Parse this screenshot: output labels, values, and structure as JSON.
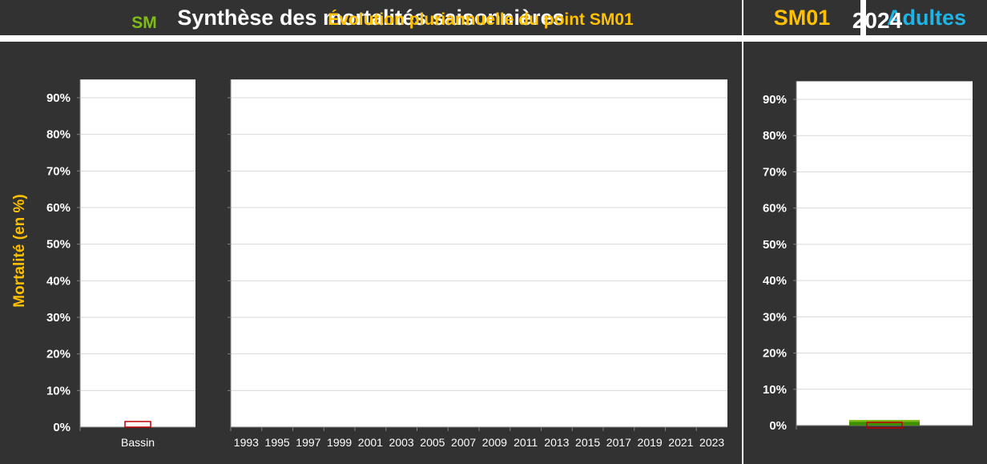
{
  "header": {
    "title": "Synthèse des mortalités saisonnières",
    "code": "SM01",
    "stage": "Adultes"
  },
  "colors": {
    "panel_bg": "#323232",
    "accent_yellow": "#ffc000",
    "accent_green": "#7fbd16",
    "accent_blue": "#1eb4e6",
    "outline_red": "#c00000",
    "bar_green": "#3f8f00"
  },
  "y_axis_label": "Mortalité (en %)",
  "chart_data": [
    {
      "type": "bar",
      "title": "SM",
      "categories": [
        "Bassin"
      ],
      "series": [
        {
          "values": [
            0
          ]
        }
      ],
      "ylim": [
        0,
        95
      ],
      "yticks": [
        "0%",
        "10%",
        "20%",
        "30%",
        "40%",
        "50%",
        "60%",
        "70%",
        "80%",
        "90%"
      ],
      "ylabel": "Mortalité (en %)",
      "grid": true
    },
    {
      "type": "bar",
      "title": "Évolution pluriannuelle du point SM01",
      "categories": [
        "1993",
        "1995",
        "1997",
        "1999",
        "2001",
        "2003",
        "2005",
        "2007",
        "2009",
        "2011",
        "2013",
        "2015",
        "2017",
        "2019",
        "2021",
        "2023"
      ],
      "series": [],
      "ylim": [
        0,
        95
      ],
      "grid": true
    },
    {
      "type": "bar",
      "title": "2024",
      "categories": [
        ""
      ],
      "series": [
        {
          "values": [
            1.5
          ]
        },
        {
          "values": [
            0
          ]
        }
      ],
      "ylim": [
        0,
        95
      ],
      "yticks": [
        "0%",
        "10%",
        "20%",
        "30%",
        "40%",
        "50%",
        "60%",
        "70%",
        "80%",
        "90%"
      ],
      "grid": true
    }
  ]
}
